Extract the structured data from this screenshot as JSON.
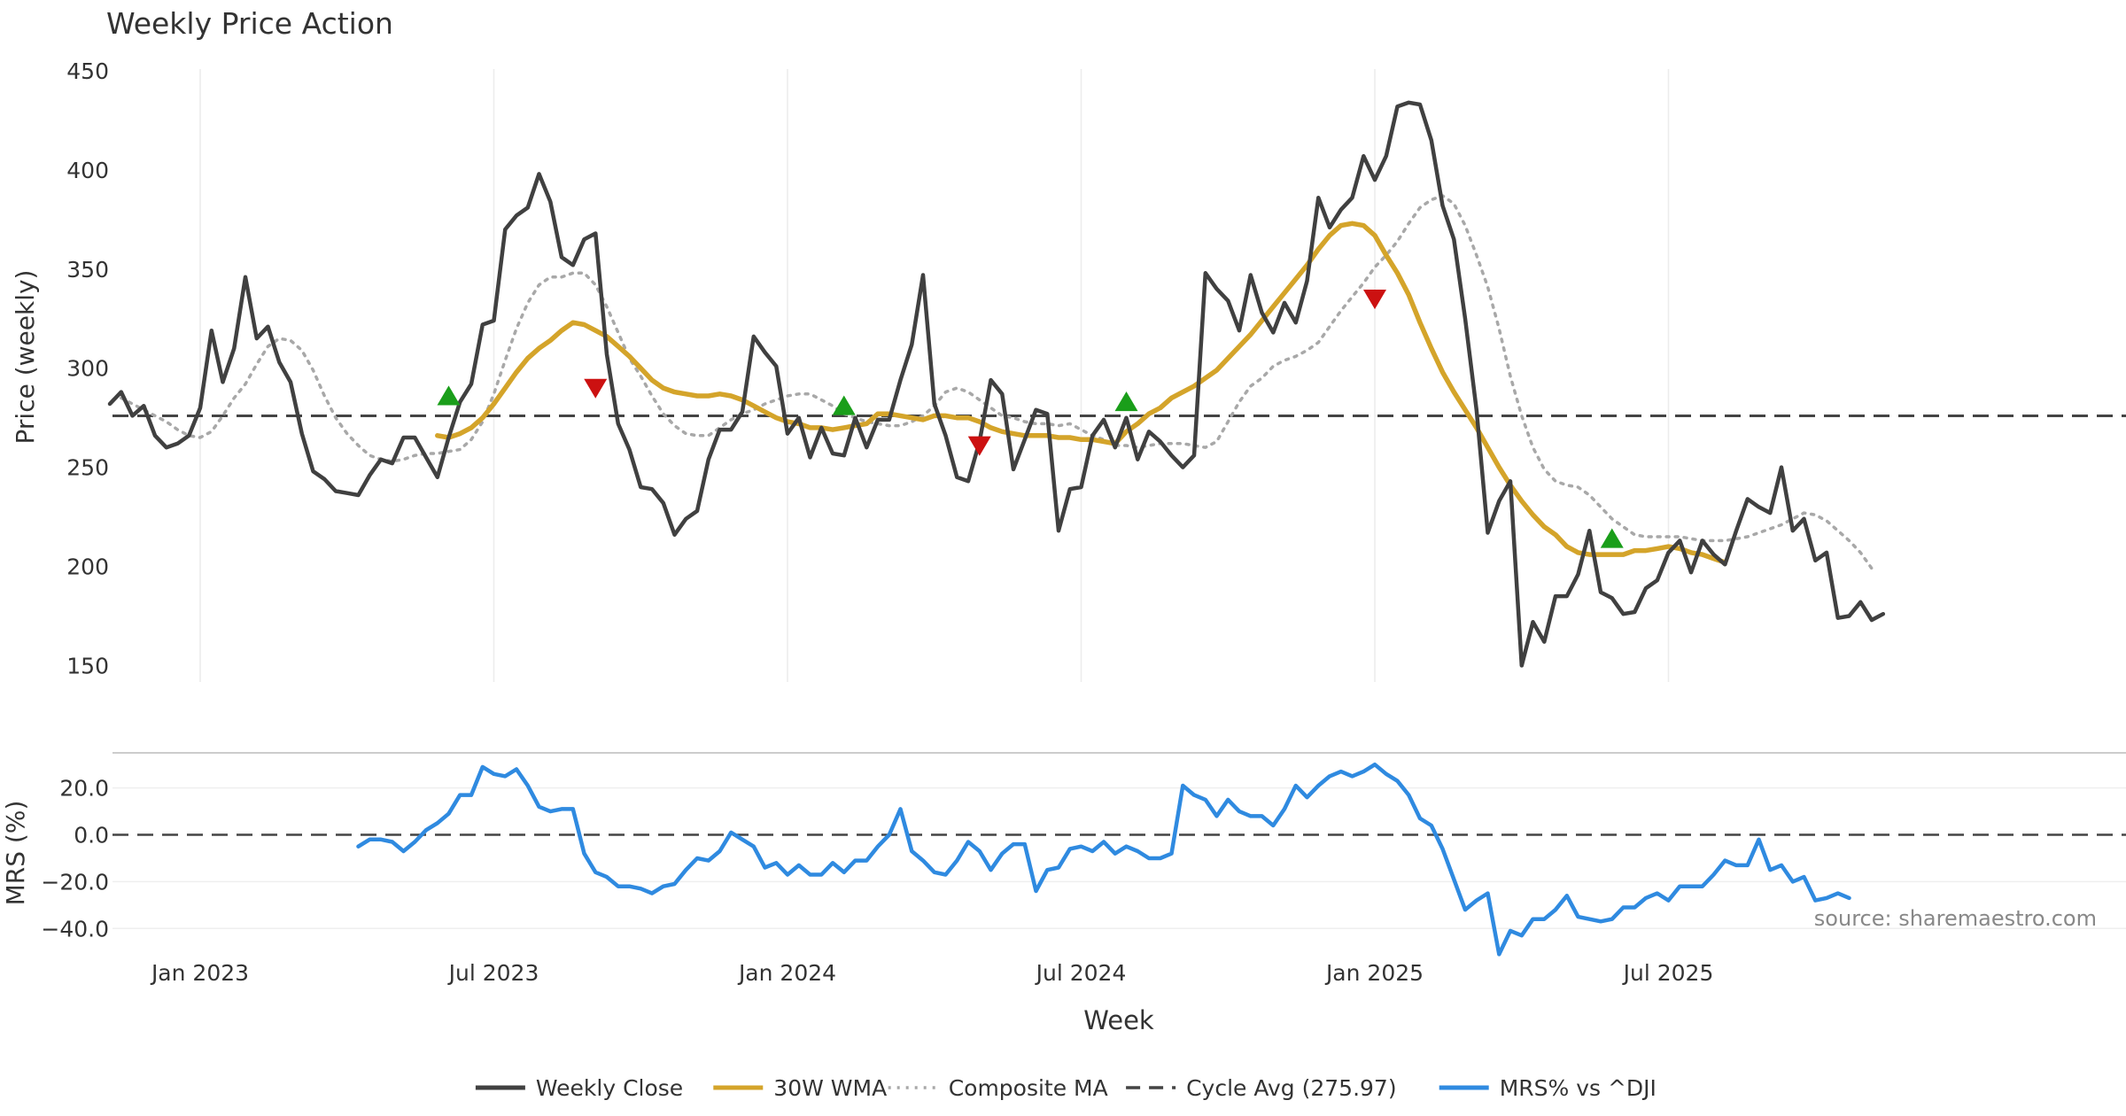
{
  "chart_data": [
    {
      "type": "line",
      "title": "Weekly Price Action",
      "ylabel": "Price (weekly)",
      "xlabel": "Week",
      "ylim": [
        135,
        450
      ],
      "yticks": [
        150,
        200,
        250,
        300,
        350,
        400,
        450
      ],
      "xticks": [
        "Jan 2023",
        "Jul 2023",
        "Jan 2024",
        "Jul 2024",
        "Jan 2025",
        "Jul 2025"
      ],
      "x": "weeks since 2022-11-07",
      "series": [
        {
          "name": "Weekly Close",
          "color": "#404040",
          "style": "solid",
          "x_start": 0,
          "values": [
            282,
            288,
            276,
            281,
            266,
            260,
            262,
            266,
            280,
            319,
            293,
            310,
            346,
            315,
            321,
            303,
            293,
            267,
            248,
            244,
            238,
            237,
            236,
            246,
            254,
            252,
            265,
            265,
            255,
            245,
            265,
            283,
            292,
            322,
            324,
            370,
            377,
            381,
            398,
            384,
            356,
            352,
            365,
            368,
            307,
            272,
            259,
            240,
            239,
            232,
            216,
            224,
            228,
            254,
            269,
            269,
            278,
            316,
            308,
            301,
            267,
            275,
            255,
            270,
            257,
            256,
            275,
            260,
            274,
            274,
            294,
            312,
            347,
            282,
            266,
            245,
            243,
            263,
            294,
            287,
            249,
            264,
            279,
            277,
            218,
            239,
            240,
            266,
            274,
            260,
            275,
            254,
            268,
            263,
            256,
            250,
            256,
            348,
            340,
            334,
            319,
            347,
            328,
            318,
            333,
            323,
            344,
            386,
            371,
            380,
            386,
            407,
            395,
            407,
            432,
            434,
            433,
            415,
            382,
            365,
            325,
            279,
            217,
            233,
            243,
            150,
            172,
            162,
            185,
            185,
            196,
            218,
            187,
            184,
            176,
            177,
            189,
            193,
            207,
            213,
            197,
            213,
            206,
            201,
            218,
            234,
            230,
            227,
            250,
            218,
            224,
            203,
            207,
            174,
            175,
            182,
            173,
            176
          ]
        },
        {
          "name": "30W WMA",
          "color": "#d4a42a",
          "style": "solid",
          "x_start": 29,
          "values": [
            266,
            265,
            267,
            270,
            275,
            282,
            290,
            298,
            305,
            310,
            314,
            319,
            323,
            322,
            319,
            316,
            311,
            306,
            300,
            294,
            290,
            288,
            287,
            286,
            286,
            287,
            286,
            284,
            281,
            278,
            275,
            273,
            272,
            270,
            270,
            269,
            270,
            271,
            272,
            277,
            277,
            276,
            275,
            274,
            276,
            276,
            275,
            275,
            273,
            270,
            268,
            267,
            266,
            266,
            266,
            265,
            265,
            264,
            264,
            263,
            262,
            268,
            272,
            277,
            280,
            285,
            288,
            291,
            295,
            299,
            305,
            311,
            317,
            324,
            331,
            338,
            345,
            352,
            360,
            367,
            372,
            373,
            372,
            367,
            357,
            348,
            337,
            323,
            310,
            298,
            288,
            279,
            270,
            260,
            250,
            241,
            233,
            226,
            220,
            216,
            210,
            207,
            206,
            206,
            206,
            206,
            208,
            208,
            209,
            210,
            209,
            207,
            206,
            204,
            202
          ]
        },
        {
          "name": "Composite MA",
          "color": "#a8a8a8",
          "style": "dotted",
          "x_start": 1,
          "values": [
            285,
            282,
            279,
            276,
            273,
            269,
            266,
            265,
            268,
            276,
            285,
            292,
            302,
            311,
            315,
            314,
            309,
            299,
            286,
            275,
            267,
            261,
            256,
            254,
            253,
            254,
            256,
            257,
            257,
            258,
            259,
            264,
            273,
            287,
            304,
            320,
            333,
            342,
            346,
            346,
            348,
            348,
            342,
            331,
            318,
            305,
            296,
            286,
            277,
            271,
            267,
            266,
            266,
            270,
            274,
            277,
            279,
            282,
            284,
            286,
            287,
            287,
            284,
            281,
            277,
            275,
            273,
            272,
            271,
            271,
            273,
            276,
            281,
            288,
            290,
            288,
            284,
            280,
            276,
            275,
            273,
            272,
            272,
            271,
            272,
            269,
            266,
            264,
            261,
            261,
            260,
            261,
            262,
            262,
            262,
            261,
            260,
            263,
            273,
            283,
            291,
            295,
            301,
            304,
            306,
            309,
            313,
            321,
            329,
            336,
            343,
            351,
            357,
            364,
            373,
            381,
            385,
            387,
            383,
            372,
            357,
            341,
            320,
            296,
            276,
            260,
            249,
            243,
            241,
            240,
            236,
            230,
            224,
            220,
            216,
            215,
            215,
            215,
            215,
            214,
            213,
            213,
            213,
            214,
            215,
            217,
            219,
            221,
            224,
            227,
            226,
            223,
            218,
            213,
            207,
            199
          ]
        }
      ],
      "reference_line": {
        "name": "Cycle Avg (275.97)",
        "value": 275.97,
        "color": "#444444",
        "style": "dashed"
      },
      "markers": [
        {
          "type": "buy",
          "x": 30,
          "value": 286,
          "color": "#1a9e1a"
        },
        {
          "type": "sell",
          "x": 43,
          "value": 290,
          "color": "#cc1111"
        },
        {
          "type": "buy",
          "x": 65,
          "value": 281,
          "color": "#1a9e1a"
        },
        {
          "type": "sell",
          "x": 77,
          "value": 261,
          "color": "#cc1111"
        },
        {
          "type": "buy",
          "x": 90,
          "value": 283,
          "color": "#1a9e1a"
        },
        {
          "type": "sell",
          "x": 112,
          "value": 335,
          "color": "#cc1111"
        },
        {
          "type": "buy",
          "x": 133,
          "value": 214,
          "color": "#1a9e1a"
        }
      ]
    },
    {
      "type": "line",
      "ylabel": "MRS (%)",
      "ylim": [
        -52,
        35
      ],
      "yticks": [
        "20.0",
        "0.0",
        "−20.0",
        "−40.0"
      ],
      "ytick_values": [
        20,
        0,
        -20,
        -40
      ],
      "series": [
        {
          "name": "MRS% vs ^DJI",
          "color": "#2f8ae0",
          "style": "solid",
          "x_start": 22,
          "values": [
            -5,
            -2,
            -2,
            -3,
            -7,
            -3,
            2,
            5,
            9,
            17,
            17,
            29,
            26,
            25,
            28,
            21,
            12,
            10,
            11,
            11,
            -8,
            -16,
            -18,
            -22,
            -22,
            -23,
            -25,
            -22,
            -21,
            -15,
            -10,
            -11,
            -7,
            1,
            -2,
            -5,
            -14,
            -12,
            -17,
            -13,
            -17,
            -17,
            -12,
            -16,
            -11,
            -11,
            -5,
            0,
            11,
            -7,
            -11,
            -16,
            -17,
            -11,
            -3,
            -7,
            -15,
            -8,
            -4,
            -4,
            -24,
            -15,
            -14,
            -6,
            -5,
            -7,
            -3,
            -8,
            -5,
            -7,
            -10,
            -10,
            -8,
            21,
            17,
            15,
            8,
            15,
            10,
            8,
            8,
            4,
            11,
            21,
            16,
            21,
            25,
            27,
            25,
            27,
            30,
            26,
            23,
            17,
            7,
            4,
            -6,
            -19,
            -32,
            -28,
            -25,
            -51,
            -41,
            -43,
            -36,
            -36,
            -32,
            -26,
            -35,
            -36,
            -37,
            -36,
            -31,
            -31,
            -27,
            -25,
            -28,
            -22,
            -22,
            -22,
            -17,
            -11,
            -13,
            -13,
            -2,
            -15,
            -13,
            -20,
            -18,
            -28,
            -27,
            -25,
            -27
          ]
        }
      ],
      "reference_line": {
        "value": 0,
        "color": "#444444",
        "style": "dashed"
      }
    }
  ],
  "annotation": {
    "source": "source: sharemaestro.com"
  },
  "legend": {
    "placement": "bottom-center",
    "items": [
      {
        "label": "Weekly Close",
        "color": "#404040",
        "style": "solid"
      },
      {
        "label": "30W WMA",
        "color": "#d4a42a",
        "style": "solid"
      },
      {
        "label": "Composite MA",
        "color": "#a8a8a8",
        "style": "dotted"
      },
      {
        "label": "Cycle Avg (275.97)",
        "color": "#444444",
        "style": "dashed"
      },
      {
        "label": "MRS% vs ^DJI",
        "color": "#2f8ae0",
        "style": "solid"
      }
    ]
  }
}
